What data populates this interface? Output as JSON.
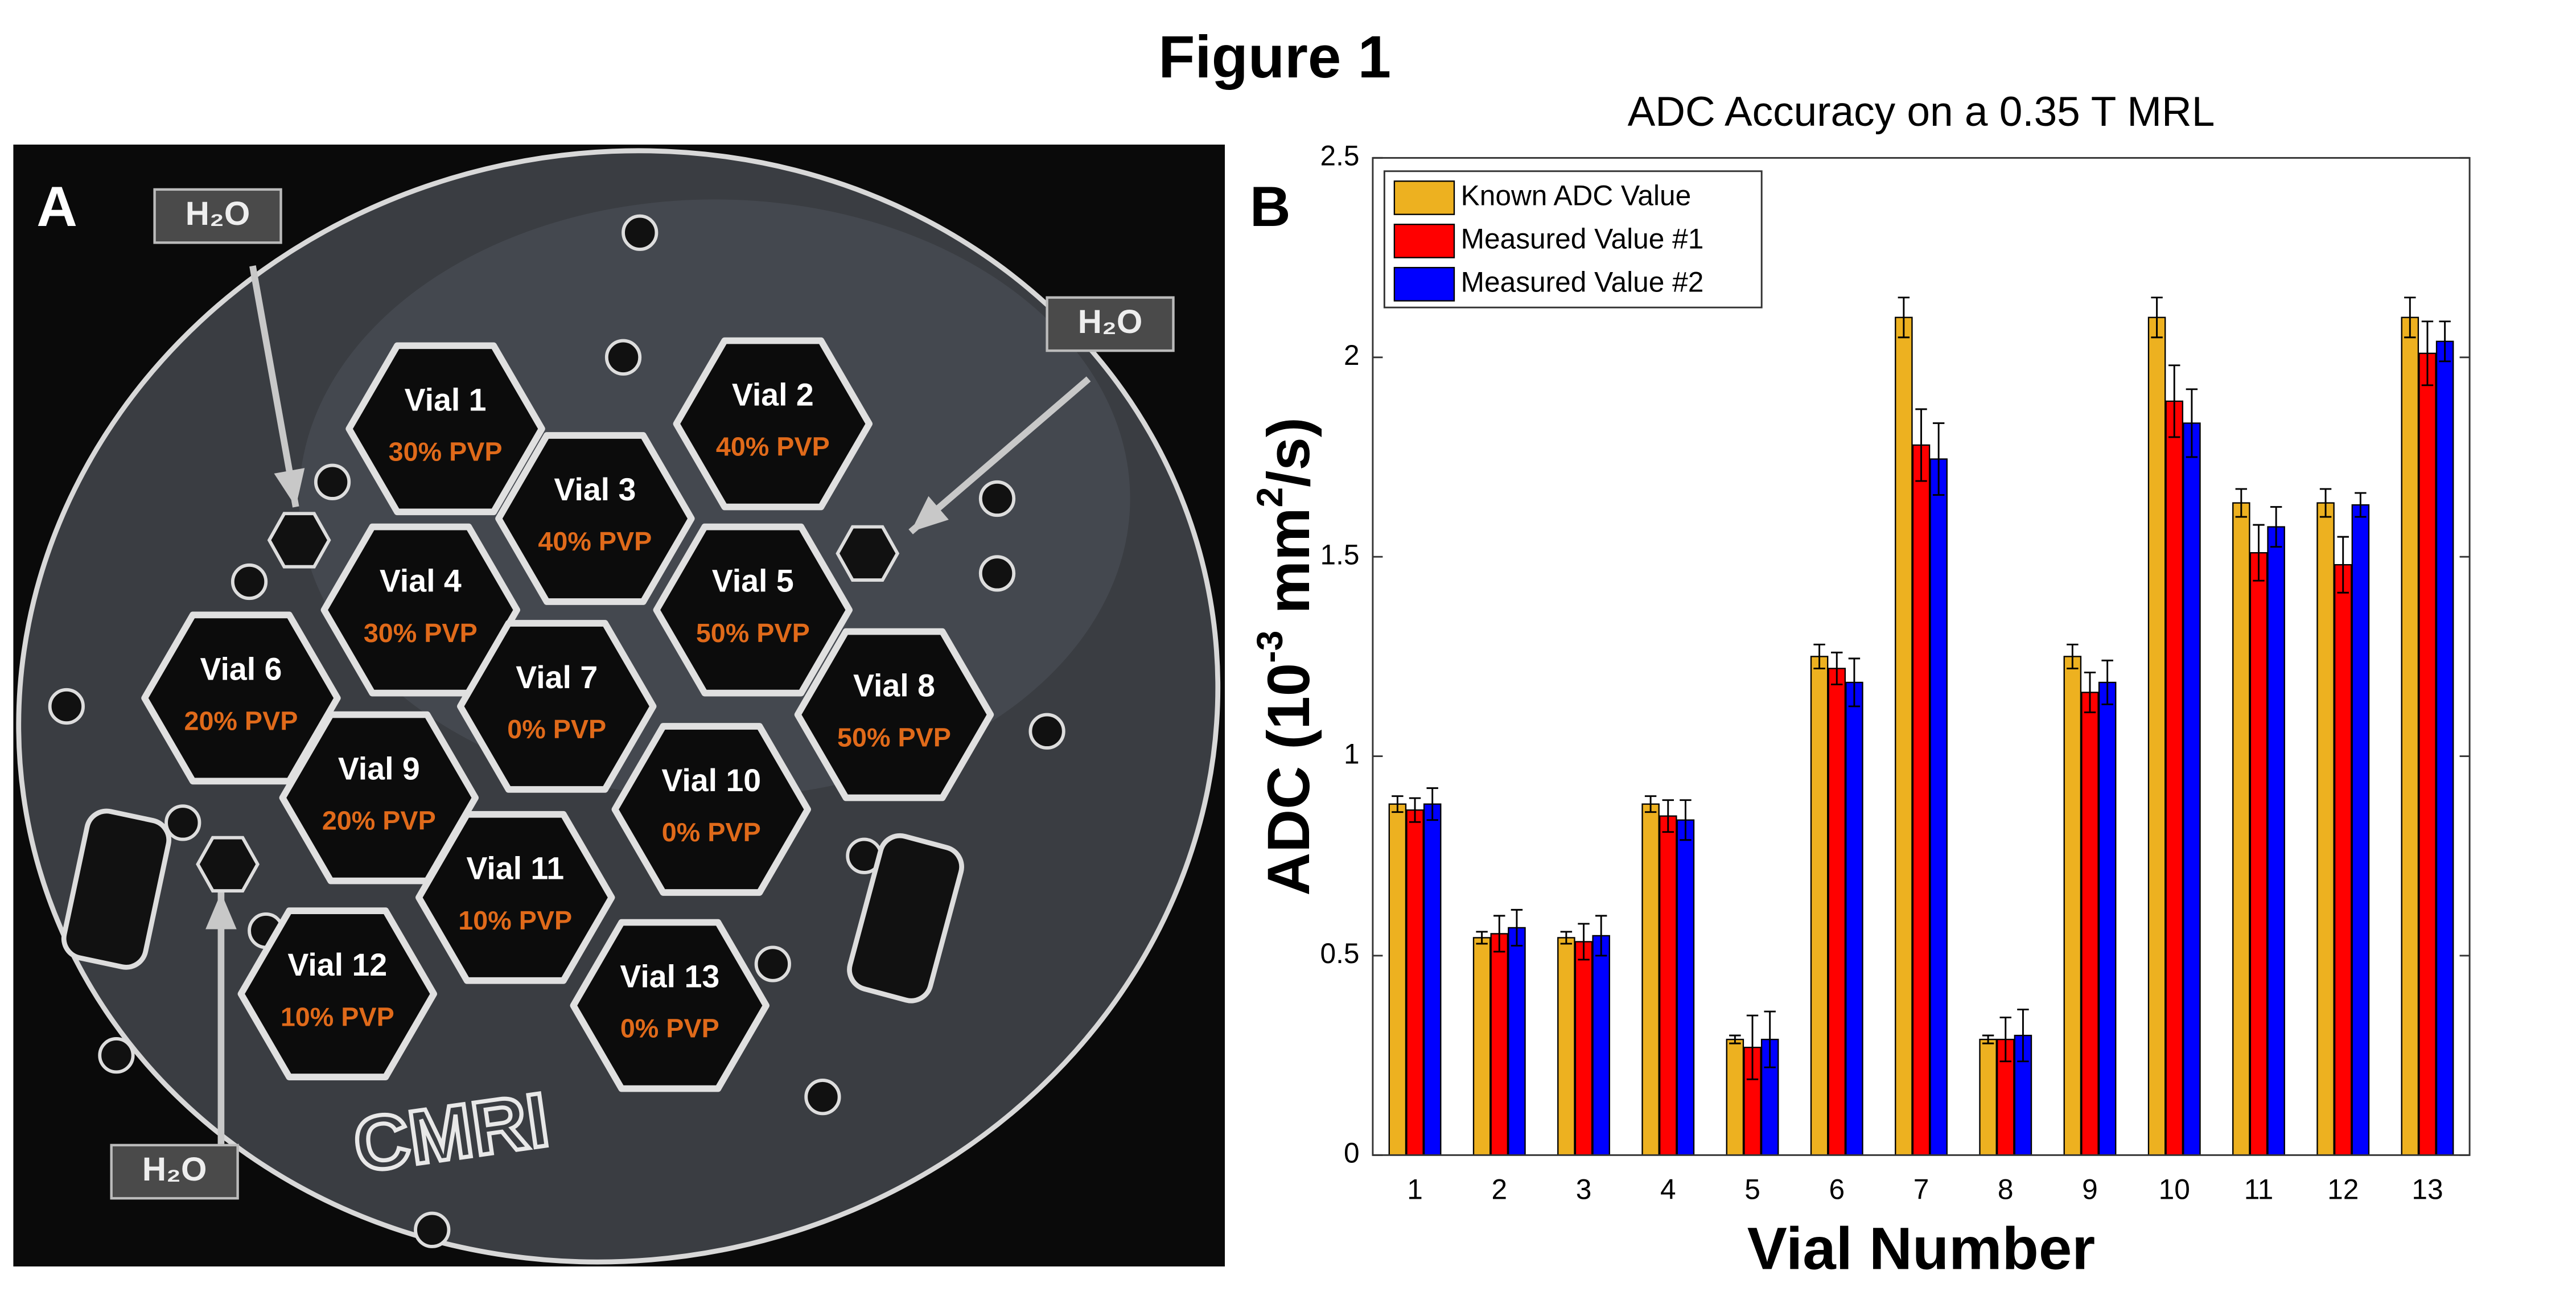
{
  "figure_title": "Figure 1",
  "panel_a": {
    "label": "A",
    "water_labels": [
      "H₂O",
      "H₂O",
      "H₂O"
    ],
    "logo": "CMRI",
    "vials": [
      {
        "name": "Vial 1",
        "pvp": "30% PVP"
      },
      {
        "name": "Vial 2",
        "pvp": "40% PVP"
      },
      {
        "name": "Vial 3",
        "pvp": "40% PVP"
      },
      {
        "name": "Vial 4",
        "pvp": "30% PVP"
      },
      {
        "name": "Vial 5",
        "pvp": "50% PVP"
      },
      {
        "name": "Vial 6",
        "pvp": "20% PVP"
      },
      {
        "name": "Vial 7",
        "pvp": "0% PVP"
      },
      {
        "name": "Vial 8",
        "pvp": "50% PVP"
      },
      {
        "name": "Vial 9",
        "pvp": "20% PVP"
      },
      {
        "name": "Vial 10",
        "pvp": "0% PVP"
      },
      {
        "name": "Vial 11",
        "pvp": "10% PVP"
      },
      {
        "name": "Vial 12",
        "pvp": "10% PVP"
      },
      {
        "name": "Vial 13",
        "pvp": "0% PVP"
      }
    ]
  },
  "chart_data": {
    "type": "bar",
    "panel_label": "B",
    "title": "ADC Accuracy on a 0.35 T MRL",
    "x_label": "Vial Number",
    "y_label": [
      "ADC (10",
      "-3",
      " mm",
      "2",
      "/s)"
    ],
    "categories": [
      "1",
      "2",
      "3",
      "4",
      "5",
      "6",
      "7",
      "8",
      "9",
      "10",
      "11",
      "12",
      "13"
    ],
    "series": [
      {
        "name": "Known ADC Value",
        "color": "#edb120",
        "values": [
          0.88,
          0.545,
          0.545,
          0.88,
          0.29,
          1.25,
          2.1,
          0.29,
          1.25,
          2.1,
          1.635,
          1.635,
          2.1
        ],
        "errors": [
          0.02,
          0.015,
          0.015,
          0.02,
          0.01,
          0.03,
          0.05,
          0.01,
          0.03,
          0.05,
          0.035,
          0.035,
          0.05
        ]
      },
      {
        "name": "Measured Value #1",
        "color": "#ff0000",
        "values": [
          0.865,
          0.555,
          0.535,
          0.85,
          0.27,
          1.22,
          1.78,
          0.29,
          1.16,
          1.89,
          1.51,
          1.48,
          2.01
        ],
        "errors": [
          0.03,
          0.045,
          0.045,
          0.04,
          0.08,
          0.04,
          0.09,
          0.055,
          0.05,
          0.09,
          0.07,
          0.07,
          0.08
        ]
      },
      {
        "name": "Measured Value #2",
        "color": "#0000ff",
        "values": [
          0.88,
          0.57,
          0.55,
          0.84,
          0.29,
          1.185,
          1.745,
          0.3,
          1.185,
          1.835,
          1.575,
          1.63,
          2.04
        ],
        "errors": [
          0.04,
          0.045,
          0.05,
          0.05,
          0.07,
          0.06,
          0.09,
          0.065,
          0.055,
          0.085,
          0.05,
          0.03,
          0.05
        ]
      }
    ],
    "ylim": [
      0,
      2.5
    ],
    "yticks": [
      0,
      0.5,
      1,
      1.5,
      2,
      2.5
    ],
    "legend": "upper left",
    "grid": false
  }
}
